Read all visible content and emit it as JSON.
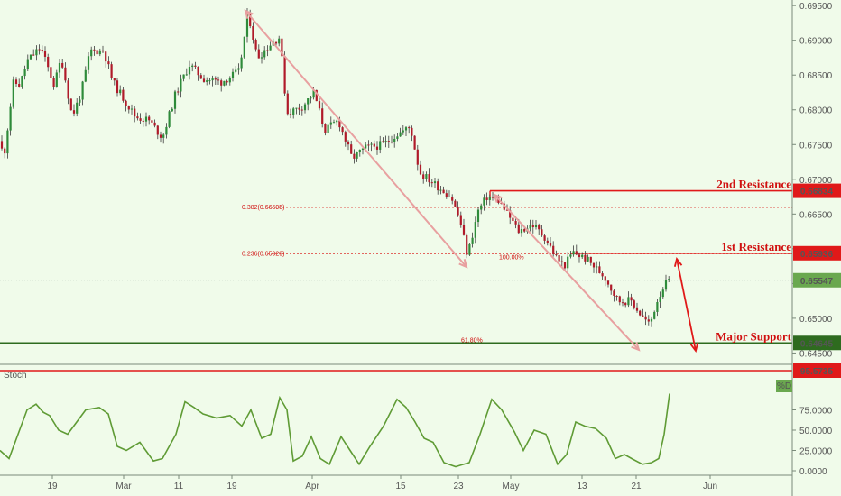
{
  "chart_data": [
    {
      "type": "candlestick",
      "title": "",
      "xlabel": "",
      "ylabel": "",
      "x_ticks": [
        "19",
        "Mar",
        "11",
        "19",
        "Apr",
        "15",
        "23",
        "May",
        "13",
        "21",
        "Jun"
      ],
      "y_ticks": [
        "0.69500",
        "0.69000",
        "0.68500",
        "0.68000",
        "0.67500",
        "0.67000",
        "0.66500",
        "0.66000",
        "0.65500",
        "0.65000",
        "0.64500"
      ],
      "ylim": [
        0.6435,
        0.6958
      ],
      "grid": false,
      "price_path": [
        [
          0,
          0.6755
        ],
        [
          4,
          0.673
        ],
        [
          15,
          0.684
        ],
        [
          22,
          0.6835
        ],
        [
          30,
          0.687
        ],
        [
          45,
          0.689
        ],
        [
          60,
          0.6835
        ],
        [
          68,
          0.6875
        ],
        [
          80,
          0.679
        ],
        [
          90,
          0.6825
        ],
        [
          100,
          0.6885
        ],
        [
          115,
          0.6885
        ],
        [
          125,
          0.684
        ],
        [
          140,
          0.681
        ],
        [
          150,
          0.679
        ],
        [
          165,
          0.6785
        ],
        [
          180,
          0.676
        ],
        [
          195,
          0.6825
        ],
        [
          210,
          0.6865
        ],
        [
          225,
          0.6845
        ],
        [
          245,
          0.684
        ],
        [
          265,
          0.6855
        ],
        [
          275,
          0.694
        ],
        [
          285,
          0.6875
        ],
        [
          300,
          0.6895
        ],
        [
          310,
          0.6905
        ],
        [
          318,
          0.6795
        ],
        [
          335,
          0.6805
        ],
        [
          348,
          0.6825
        ],
        [
          360,
          0.677
        ],
        [
          375,
          0.6785
        ],
        [
          390,
          0.673
        ],
        [
          405,
          0.6745
        ],
        [
          425,
          0.675
        ],
        [
          440,
          0.6765
        ],
        [
          455,
          0.6775
        ],
        [
          465,
          0.671
        ],
        [
          480,
          0.6695
        ],
        [
          500,
          0.6675
        ],
        [
          510,
          0.664
        ],
        [
          518,
          0.659
        ],
        [
          530,
          0.6655
        ],
        [
          540,
          0.6675
        ],
        [
          552,
          0.667
        ],
        [
          565,
          0.6645
        ],
        [
          575,
          0.6625
        ],
        [
          590,
          0.6635
        ],
        [
          605,
          0.6615
        ],
        [
          615,
          0.659
        ],
        [
          625,
          0.6575
        ],
        [
          635,
          0.6595
        ],
        [
          650,
          0.6585
        ],
        [
          670,
          0.656
        ],
        [
          685,
          0.6525
        ],
        [
          700,
          0.6525
        ],
        [
          710,
          0.6505
        ],
        [
          720,
          0.649
        ],
        [
          728,
          0.6525
        ],
        [
          735,
          0.6545
        ],
        [
          742,
          0.6555
        ]
      ],
      "last_price": "0.65547",
      "levels": [
        {
          "label": "2nd Resistance",
          "value": 0.66834,
          "tag": "0.66834",
          "color": "#e01919"
        },
        {
          "label": "1st Resistance",
          "value": 0.65936,
          "tag": "0.65936",
          "color": "#e01919"
        },
        {
          "label": "Major Support",
          "value": 0.64645,
          "tag": "0.64645",
          "color": "#2e6b1f"
        }
      ],
      "fib_levels": [
        {
          "label": "0.382(0.66595)",
          "value": 0.66595
        },
        {
          "label": "0.236(0.65929)",
          "value": 0.65929
        }
      ],
      "fib_marks": [
        "100.00%",
        "61.80%"
      ],
      "arrows_note": "Two descending pink trend arrows and a red projection arrow down to Major Support"
    },
    {
      "type": "line",
      "title": "Stoch",
      "ylim": [
        0,
        100
      ],
      "y_ticks": [
        "75.0000",
        "50.0000",
        "25.0000",
        "0.0000"
      ],
      "series": [
        {
          "name": "%D",
          "values": [
            [
              0,
              25
            ],
            [
              10,
              15
            ],
            [
              20,
              45
            ],
            [
              30,
              75
            ],
            [
              40,
              82
            ],
            [
              48,
              72
            ],
            [
              55,
              68
            ],
            [
              65,
              50
            ],
            [
              75,
              45
            ],
            [
              85,
              60
            ],
            [
              95,
              75
            ],
            [
              110,
              78
            ],
            [
              120,
              70
            ],
            [
              130,
              30
            ],
            [
              140,
              25
            ],
            [
              155,
              35
            ],
            [
              170,
              12
            ],
            [
              180,
              15
            ],
            [
              195,
              45
            ],
            [
              205,
              85
            ],
            [
              215,
              78
            ],
            [
              225,
              70
            ],
            [
              240,
              65
            ],
            [
              255,
              68
            ],
            [
              268,
              55
            ],
            [
              278,
              75
            ],
            [
              290,
              40
            ],
            [
              300,
              45
            ],
            [
              310,
              90
            ],
            [
              318,
              75
            ],
            [
              325,
              12
            ],
            [
              335,
              18
            ],
            [
              345,
              42
            ],
            [
              355,
              15
            ],
            [
              365,
              8
            ],
            [
              378,
              42
            ],
            [
              388,
              25
            ],
            [
              398,
              8
            ],
            [
              410,
              30
            ],
            [
              425,
              55
            ],
            [
              440,
              88
            ],
            [
              450,
              78
            ],
            [
              460,
              60
            ],
            [
              470,
              40
            ],
            [
              480,
              35
            ],
            [
              492,
              10
            ],
            [
              505,
              5
            ],
            [
              520,
              10
            ],
            [
              532,
              45
            ],
            [
              545,
              88
            ],
            [
              556,
              75
            ],
            [
              570,
              48
            ],
            [
              580,
              25
            ],
            [
              592,
              50
            ],
            [
              605,
              45
            ],
            [
              618,
              8
            ],
            [
              628,
              20
            ],
            [
              638,
              60
            ],
            [
              648,
              55
            ],
            [
              660,
              52
            ],
            [
              672,
              40
            ],
            [
              682,
              15
            ],
            [
              692,
              20
            ],
            [
              700,
              15
            ],
            [
              712,
              8
            ],
            [
              722,
              10
            ],
            [
              730,
              15
            ],
            [
              736,
              45
            ],
            [
              742,
              95
            ]
          ]
        }
      ],
      "top_level": "95.5735",
      "last_value_tag": "%D"
    }
  ]
}
